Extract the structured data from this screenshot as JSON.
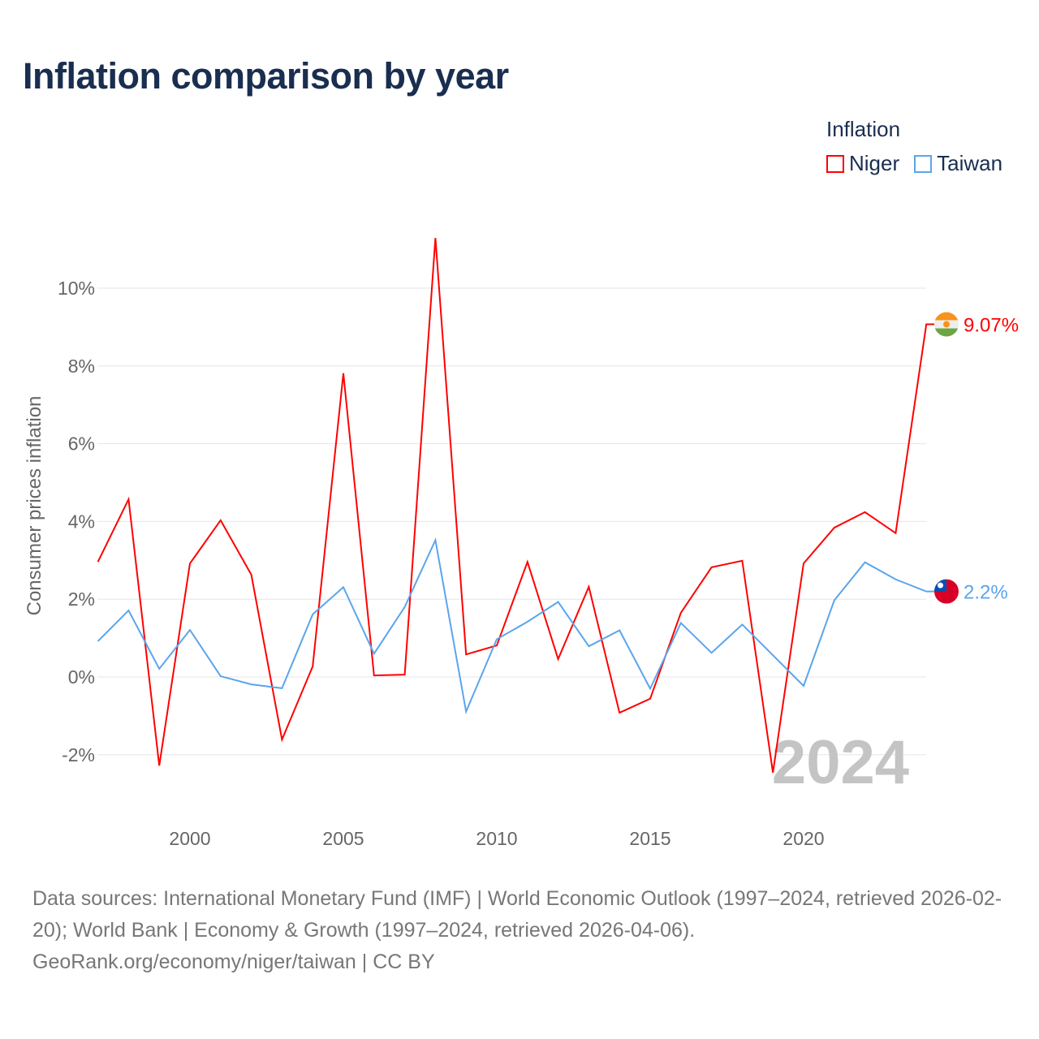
{
  "title": "Inflation comparison by year",
  "legend": {
    "title": "Inflation",
    "items": [
      {
        "name": "Niger",
        "color": "#ff0000"
      },
      {
        "name": "Taiwan",
        "color": "#5aa5ec"
      }
    ]
  },
  "watermark_year": "2024",
  "footer": {
    "sources": "Data sources: International Monetary Fund (IMF) | World Economic Outlook (1997–2024, retrieved 2026-02-20); World Bank | Economy & Growth (1997–2024, retrieved 2026-04-06).",
    "credit": "GeoRank.org/economy/niger/taiwan | CC BY"
  },
  "chart_data": {
    "type": "line",
    "title": "Inflation comparison by year",
    "xlabel": "",
    "ylabel": "Consumer prices inflation",
    "xlim": [
      1997,
      2024
    ],
    "ylim": [
      -3,
      11.5
    ],
    "yticks": [
      -2,
      0,
      2,
      4,
      6,
      8,
      10
    ],
    "ytick_labels": [
      "-2%",
      "0%",
      "2%",
      "4%",
      "6%",
      "8%",
      "10%"
    ],
    "xticks": [
      2000,
      2005,
      2010,
      2015,
      2020
    ],
    "xtick_labels": [
      "2000",
      "2005",
      "2010",
      "2015",
      "2020"
    ],
    "grid": true,
    "legend_position": "top-right",
    "x": [
      1997,
      1998,
      1999,
      2000,
      2001,
      2002,
      2003,
      2004,
      2005,
      2006,
      2007,
      2008,
      2009,
      2010,
      2011,
      2012,
      2013,
      2014,
      2015,
      2016,
      2017,
      2018,
      2019,
      2020,
      2021,
      2022,
      2023,
      2024
    ],
    "series": [
      {
        "name": "Niger",
        "color": "#ff0000",
        "end_label": "9.07%",
        "values": [
          2.96,
          4.57,
          -2.28,
          2.92,
          4.03,
          2.63,
          -1.61,
          0.27,
          7.81,
          0.04,
          0.06,
          11.29,
          0.58,
          0.81,
          2.96,
          0.46,
          2.32,
          -0.92,
          -0.56,
          1.65,
          2.82,
          2.99,
          -2.46,
          2.92,
          3.84,
          4.24,
          3.7,
          9.07
        ]
      },
      {
        "name": "Taiwan",
        "color": "#5aa5ec",
        "end_label": "2.2%",
        "values": [
          0.92,
          1.71,
          0.21,
          1.21,
          0.02,
          -0.19,
          -0.29,
          1.61,
          2.31,
          0.6,
          1.8,
          3.52,
          -0.89,
          0.97,
          1.42,
          1.93,
          0.79,
          1.2,
          -0.3,
          1.39,
          0.62,
          1.35,
          0.56,
          -0.23,
          1.97,
          2.95,
          2.51,
          2.2
        ]
      }
    ]
  }
}
